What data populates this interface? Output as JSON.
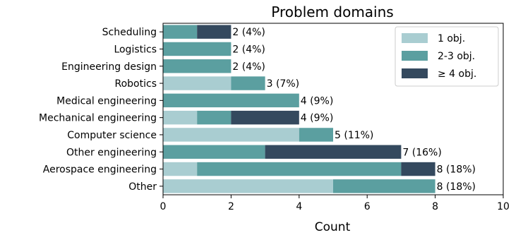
{
  "chart_data": {
    "type": "bar",
    "orientation": "horizontal",
    "stacked": true,
    "title": "Problem domains",
    "xlabel": "Count",
    "ylabel": "",
    "xlim": [
      0,
      10
    ],
    "xticks": [
      "0",
      "2",
      "4",
      "6",
      "8",
      "10"
    ],
    "grid": false,
    "legend_position": "top-right",
    "categories": [
      "Scheduling",
      "Logistics",
      "Engineering design",
      "Robotics",
      "Medical engineering",
      "Mechanical engineering",
      "Computer science",
      "Other engineering",
      "Aerospace engineering",
      "Other"
    ],
    "series": [
      {
        "name": "1 obj.",
        "color": "#a9cdd1",
        "values": [
          0,
          0,
          0,
          2,
          0,
          1,
          4,
          0,
          1,
          5
        ]
      },
      {
        "name": "2-3 obj.",
        "color": "#5b9fa0",
        "values": [
          1,
          2,
          2,
          1,
          4,
          1,
          1,
          3,
          6,
          3
        ]
      },
      {
        "name": "≥ 4 obj.",
        "color": "#34495e",
        "values": [
          1,
          0,
          0,
          0,
          0,
          2,
          0,
          4,
          1,
          0
        ]
      }
    ],
    "totals": [
      2,
      2,
      2,
      3,
      4,
      4,
      5,
      7,
      8,
      8
    ],
    "data_labels": [
      "2 (4%)",
      "2 (4%)",
      "2 (4%)",
      "3 (7%)",
      "4 (9%)",
      "4 (9%)",
      "5 (11%)",
      "7 (16%)",
      "8 (18%)",
      "8 (18%)"
    ]
  }
}
